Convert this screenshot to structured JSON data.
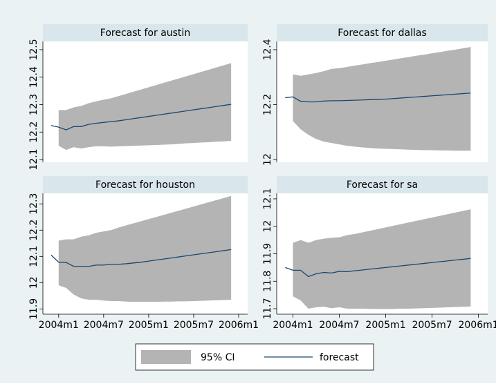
{
  "chart_data": [
    {
      "type": "line",
      "title": "Forecast for austin",
      "x": [
        527,
        528,
        529,
        530,
        531,
        532,
        533,
        534,
        535,
        536,
        537,
        538,
        539,
        540,
        541,
        542,
        543,
        544,
        545,
        546,
        547,
        548,
        549,
        550,
        551
      ],
      "xlim": [
        525.9,
        553.2
      ],
      "ylim": [
        12.09,
        12.53
      ],
      "yticks": [
        12.1,
        12.2,
        12.3,
        12.4,
        12.5
      ],
      "series": [
        {
          "lower": [
            null,
            12.15,
            12.135,
            12.145,
            12.14,
            12.145,
            12.148,
            12.148,
            12.147,
            12.148,
            12.149,
            12.15,
            12.151,
            12.152,
            12.153,
            12.154,
            12.155,
            12.157,
            12.159,
            12.16,
            12.162,
            12.163,
            12.165,
            12.166,
            12.168
          ],
          "upper": [
            null,
            12.28,
            12.28,
            12.29,
            12.295,
            12.305,
            12.312,
            12.318,
            12.323,
            12.331,
            12.339,
            12.347,
            12.355,
            12.363,
            12.371,
            12.379,
            12.387,
            12.395,
            12.403,
            12.411,
            12.419,
            12.427,
            12.435,
            12.443,
            12.451
          ]
        },
        {
          "values": [
            12.224,
            12.218,
            12.208,
            12.22,
            12.22,
            12.228,
            12.232,
            12.235,
            12.238,
            12.241,
            12.245,
            12.249,
            12.253,
            12.257,
            12.261,
            12.265,
            12.269,
            12.273,
            12.277,
            12.281,
            12.285,
            12.289,
            12.293,
            12.297,
            12.301
          ]
        }
      ]
    },
    {
      "type": "line",
      "title": "Forecast for dallas",
      "x": [
        527,
        528,
        529,
        530,
        531,
        532,
        533,
        534,
        535,
        536,
        537,
        538,
        539,
        540,
        541,
        542,
        543,
        544,
        545,
        546,
        547,
        548,
        549,
        550,
        551
      ],
      "xlim": [
        525.9,
        553.2
      ],
      "ylim": [
        11.99,
        12.43
      ],
      "yticks": [
        12,
        12.2,
        12.4
      ],
      "series": [
        {
          "lower": [
            null,
            12.14,
            12.11,
            12.09,
            12.075,
            12.065,
            12.06,
            12.055,
            12.05,
            12.047,
            12.044,
            12.042,
            12.04,
            12.039,
            12.038,
            12.037,
            12.036,
            12.035,
            12.034,
            12.034,
            12.033,
            12.033,
            12.032,
            12.032,
            12.032
          ],
          "upper": [
            null,
            12.31,
            12.305,
            12.31,
            12.315,
            12.322,
            12.33,
            12.333,
            12.337,
            12.342,
            12.346,
            12.351,
            12.355,
            12.36,
            12.364,
            12.369,
            12.373,
            12.378,
            12.382,
            12.387,
            12.391,
            12.396,
            12.4,
            12.405,
            12.41
          ]
        },
        {
          "values": [
            12.225,
            12.228,
            12.212,
            12.21,
            12.21,
            12.213,
            12.214,
            12.214,
            12.215,
            12.216,
            12.217,
            12.218,
            12.219,
            12.22,
            12.222,
            12.224,
            12.226,
            12.228,
            12.23,
            12.232,
            12.234,
            12.236,
            12.238,
            12.24,
            12.242
          ]
        }
      ]
    },
    {
      "type": "line",
      "title": "Forecast for houston",
      "x": [
        527,
        528,
        529,
        530,
        531,
        532,
        533,
        534,
        535,
        536,
        537,
        538,
        539,
        540,
        541,
        542,
        543,
        544,
        545,
        546,
        547,
        548,
        549,
        550,
        551
      ],
      "xlim": [
        525.9,
        553.2
      ],
      "ylim": [
        11.88,
        12.34
      ],
      "yticks": [
        11.9,
        12,
        12.1,
        12.2,
        12.3
      ],
      "xticks": [
        {
          "value": 528,
          "label": "2004m1"
        },
        {
          "value": 534,
          "label": "2004m7"
        },
        {
          "value": 540,
          "label": "2005m1"
        },
        {
          "value": 546,
          "label": "2005m7"
        },
        {
          "value": 552,
          "label": "2006m1"
        }
      ],
      "series": [
        {
          "lower": [
            null,
            11.99,
            11.98,
            11.955,
            11.94,
            11.935,
            11.935,
            11.932,
            11.93,
            11.93,
            11.928,
            11.927,
            11.927,
            11.927,
            11.927,
            11.928,
            11.928,
            11.929,
            11.929,
            11.93,
            11.931,
            11.932,
            11.933,
            11.934,
            11.935
          ],
          "upper": [
            null,
            12.16,
            12.165,
            12.165,
            12.175,
            12.18,
            12.19,
            12.195,
            12.2,
            12.21,
            12.218,
            12.226,
            12.234,
            12.242,
            12.25,
            12.258,
            12.266,
            12.274,
            12.282,
            12.29,
            12.298,
            12.306,
            12.314,
            12.322,
            12.33
          ]
        },
        {
          "values": [
            12.105,
            12.078,
            12.077,
            12.062,
            12.062,
            12.062,
            12.067,
            12.067,
            12.07,
            12.07,
            12.072,
            12.075,
            12.078,
            12.082,
            12.086,
            12.09,
            12.094,
            12.098,
            12.102,
            12.106,
            12.11,
            12.114,
            12.118,
            12.122,
            12.126
          ]
        }
      ]
    },
    {
      "type": "line",
      "title": "Forecast for sa",
      "x": [
        527,
        528,
        529,
        530,
        531,
        532,
        533,
        534,
        535,
        536,
        537,
        538,
        539,
        540,
        541,
        542,
        543,
        544,
        545,
        546,
        547,
        548,
        549,
        550,
        551
      ],
      "xlim": [
        525.9,
        553.2
      ],
      "ylim": [
        11.68,
        12.12
      ],
      "yticks": [
        11.7,
        11.8,
        11.9,
        12,
        12.1
      ],
      "xticks": [
        {
          "value": 528,
          "label": "2004m1"
        },
        {
          "value": 534,
          "label": "2004m7"
        },
        {
          "value": 540,
          "label": "2005m1"
        },
        {
          "value": 546,
          "label": "2005m7"
        },
        {
          "value": 552,
          "label": "2006m1"
        }
      ],
      "series": [
        {
          "lower": [
            null,
            11.745,
            11.73,
            11.7,
            11.705,
            11.707,
            11.702,
            11.705,
            11.7,
            11.7,
            11.7,
            11.699,
            11.699,
            11.699,
            11.699,
            11.7,
            11.7,
            11.701,
            11.702,
            11.703,
            11.704,
            11.705,
            11.706,
            11.707,
            11.708
          ],
          "upper": [
            null,
            11.94,
            11.95,
            11.94,
            11.95,
            11.955,
            11.958,
            11.96,
            11.968,
            11.972,
            11.978,
            11.984,
            11.99,
            11.996,
            12.002,
            12.008,
            12.014,
            12.02,
            12.026,
            12.032,
            12.038,
            12.044,
            12.05,
            12.056,
            12.062
          ]
        },
        {
          "values": [
            11.85,
            11.84,
            11.84,
            11.817,
            11.827,
            11.832,
            11.83,
            11.836,
            11.835,
            11.838,
            11.841,
            11.844,
            11.847,
            11.85,
            11.853,
            11.856,
            11.859,
            11.862,
            11.865,
            11.868,
            11.871,
            11.874,
            11.877,
            11.88,
            11.883
          ]
        }
      ]
    }
  ],
  "legend": [
    {
      "name": "95% CI",
      "color": "#b4b4b4"
    },
    {
      "name": "forecast",
      "color": "#1a476f"
    }
  ]
}
